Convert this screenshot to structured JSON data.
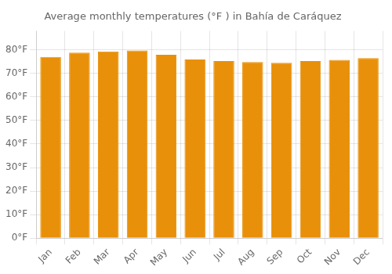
{
  "chart_data": {
    "type": "bar",
    "title": "Average monthly temperatures (°F ) in Bahía de Caráquez",
    "categories": [
      "Jan",
      "Feb",
      "Mar",
      "Apr",
      "May",
      "Jun",
      "Jul",
      "Aug",
      "Sep",
      "Oct",
      "Nov",
      "Dec"
    ],
    "values": [
      77.0,
      78.8,
      79.3,
      79.7,
      77.9,
      75.9,
      75.2,
      74.8,
      74.5,
      75.2,
      75.7,
      76.5
    ],
    "color": "#E8900A",
    "ylim": [
      0,
      88
    ],
    "yticks": [
      {
        "value": 0,
        "label": "0°F"
      },
      {
        "value": 10,
        "label": "10°F"
      },
      {
        "value": 20,
        "label": "20°F"
      },
      {
        "value": 30,
        "label": "30°F"
      },
      {
        "value": 40,
        "label": "40°F"
      },
      {
        "value": 50,
        "label": "50°F"
      },
      {
        "value": 60,
        "label": "60°F"
      },
      {
        "value": 70,
        "label": "70°F"
      },
      {
        "value": 80,
        "label": "80°F"
      }
    ],
    "grid": true
  }
}
